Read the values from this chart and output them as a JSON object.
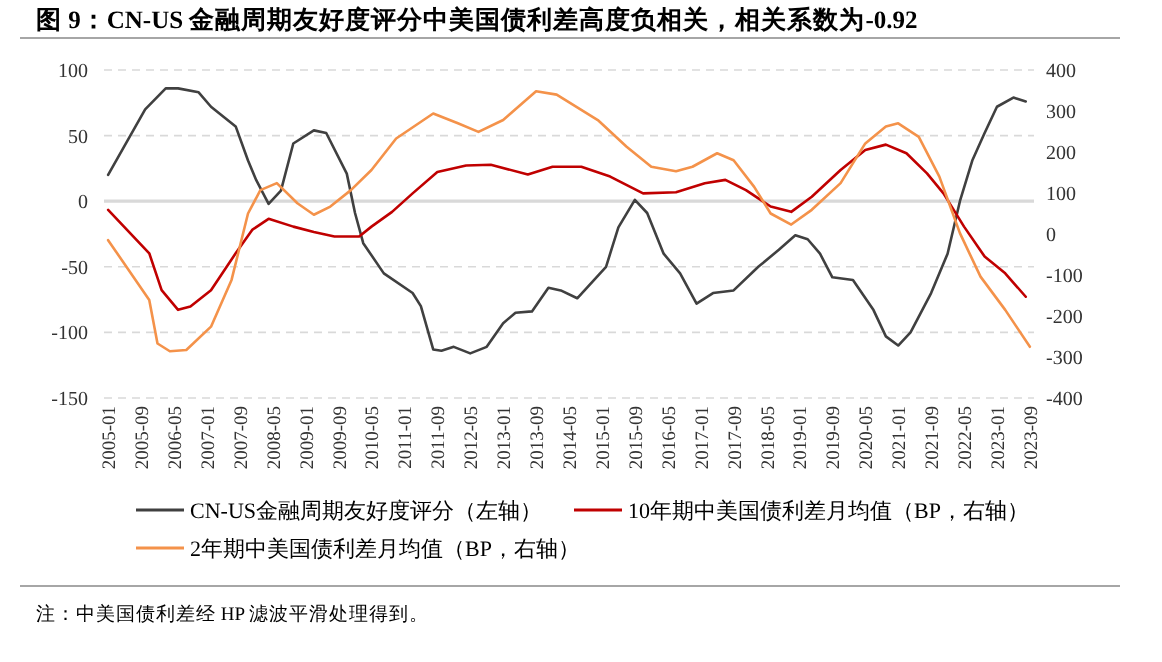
{
  "chart_data": {
    "type": "line",
    "title": "图 9：CN-US 金融周期友好度评分中美国债利差高度负相关，相关系数为-0.92",
    "xlim": [
      "2004-12",
      "2023-10"
    ],
    "xticks": [
      "2005-01",
      "2005-09",
      "2006-05",
      "2007-01",
      "2007-09",
      "2008-05",
      "2009-01",
      "2009-09",
      "2010-05",
      "2011-01",
      "2011-09",
      "2012-05",
      "2013-01",
      "2013-09",
      "2014-05",
      "2015-01",
      "2015-09",
      "2016-05",
      "2017-01",
      "2017-09",
      "2018-05",
      "2019-01",
      "2019-09",
      "2020-05",
      "2021-01",
      "2021-09",
      "2022-05",
      "2023-01",
      "2023-09"
    ],
    "ylim": [
      -150,
      100
    ],
    "yticks": [
      -150,
      -100,
      -50,
      0,
      50,
      100
    ],
    "y2lim": [
      -400,
      400
    ],
    "y2ticks": [
      -400,
      -300,
      -200,
      -100,
      0,
      100,
      200,
      300,
      400
    ],
    "grid": "y",
    "legend": "bottom",
    "line_style": "solid",
    "ref_lines": [
      {
        "axis": "y",
        "value": 0,
        "color": "#d9d9d9",
        "line_style": "solid"
      }
    ],
    "series": [
      {
        "name": "CN-US金融周期友好度评分（左轴）",
        "color": "#404040",
        "x": [
          "2005-01",
          "2005-10",
          "2006-03",
          "2006-06",
          "2006-11",
          "2007-02",
          "2007-08",
          "2007-11",
          "2008-01",
          "2008-04",
          "2008-07",
          "2008-10",
          "2009-03",
          "2009-06",
          "2009-11",
          "2010-01",
          "2010-03",
          "2010-08",
          "2011-03",
          "2011-05",
          "2011-08",
          "2011-10",
          "2012-01",
          "2012-05",
          "2012-09",
          "2013-01",
          "2013-04",
          "2013-08",
          "2013-12",
          "2014-03",
          "2014-07",
          "2015-02",
          "2015-05",
          "2015-09",
          "2015-12",
          "2016-04",
          "2016-08",
          "2016-12",
          "2017-04",
          "2017-09",
          "2018-03",
          "2018-08",
          "2018-12",
          "2019-03",
          "2019-06",
          "2019-09",
          "2020-02",
          "2020-07",
          "2020-10",
          "2021-01",
          "2021-04",
          "2021-09",
          "2022-01",
          "2022-04",
          "2022-07",
          "2022-10",
          "2023-01",
          "2023-05",
          "2023-08"
        ],
        "values": [
          20,
          70,
          86,
          86,
          83,
          72,
          57,
          31,
          16,
          -2,
          8,
          44,
          54,
          52,
          21,
          -9,
          -32,
          -55,
          -70,
          -80,
          -113,
          -114,
          -111,
          -116,
          -111,
          -93,
          -85,
          -84,
          -66,
          -68,
          -74,
          -50,
          -20,
          1,
          -9,
          -40,
          -55,
          -78,
          -70,
          -68,
          -50,
          -37,
          -26,
          -29,
          -40,
          -58,
          -60,
          -83,
          -103,
          -110,
          -100,
          -70,
          -40,
          0,
          31,
          52,
          72,
          79,
          76
        ]
      },
      {
        "name": "10年期中美国债利差月均值（BP，右轴）",
        "color": "#c00000",
        "axis": "y2",
        "x": [
          "2005-01",
          "2005-11",
          "2006-02",
          "2006-06",
          "2006-09",
          "2007-02",
          "2007-08",
          "2007-12",
          "2008-04",
          "2008-10",
          "2009-03",
          "2009-08",
          "2010-02",
          "2010-05",
          "2010-10",
          "2011-03",
          "2011-09",
          "2012-04",
          "2012-10",
          "2013-07",
          "2014-01",
          "2014-08",
          "2015-03",
          "2015-11",
          "2016-07",
          "2017-02",
          "2017-07",
          "2017-12",
          "2018-06",
          "2018-11",
          "2019-04",
          "2019-11",
          "2020-05",
          "2020-10",
          "2021-03",
          "2021-08",
          "2021-12",
          "2022-05",
          "2022-10",
          "2023-03",
          "2023-08"
        ],
        "values": [
          59,
          -47,
          -137,
          -185,
          -177,
          -137,
          -47,
          10,
          37,
          18,
          5,
          -6,
          -6,
          18,
          54,
          99,
          151,
          167,
          169,
          145,
          164,
          164,
          140,
          99,
          102,
          124,
          132,
          107,
          67,
          54,
          91,
          156,
          205,
          218,
          197,
          148,
          99,
          18,
          -55,
          -96,
          -153
        ]
      },
      {
        "name": "2年期中美国债利差月均值（BP，右轴）",
        "color": "#f4924a",
        "axis": "y2",
        "x": [
          "2005-01",
          "2005-11",
          "2006-01",
          "2006-04",
          "2006-08",
          "2007-02",
          "2007-07",
          "2007-11",
          "2008-02",
          "2008-06",
          "2008-11",
          "2009-03",
          "2009-07",
          "2009-12",
          "2010-05",
          "2010-11",
          "2011-08",
          "2012-02",
          "2012-07",
          "2013-01",
          "2013-09",
          "2014-02",
          "2014-12",
          "2015-07",
          "2016-01",
          "2016-07",
          "2016-11",
          "2017-05",
          "2017-09",
          "2018-02",
          "2018-06",
          "2018-11",
          "2019-04",
          "2019-11",
          "2020-05",
          "2020-10",
          "2021-01",
          "2021-06",
          "2021-11",
          "2022-04",
          "2022-09",
          "2023-03",
          "2023-09"
        ],
        "values": [
          -15,
          -161,
          -267,
          -286,
          -283,
          -226,
          -112,
          50,
          107,
          124,
          75,
          47,
          67,
          107,
          156,
          233,
          294,
          270,
          249,
          278,
          348,
          340,
          278,
          213,
          164,
          153,
          164,
          197,
          180,
          115,
          50,
          23,
          59,
          124,
          221,
          262,
          270,
          237,
          140,
          2,
          -104,
          -185,
          -275
        ]
      }
    ],
    "annotations": [
      "注：中美国债利差经 HP 滤波平滑处理得到。"
    ]
  }
}
